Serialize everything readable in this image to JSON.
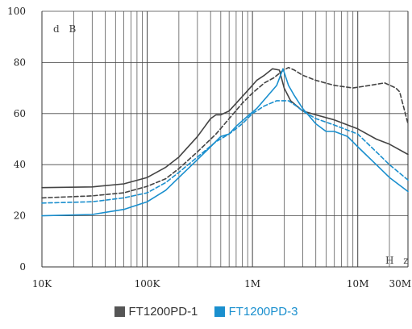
{
  "chart_data": {
    "type": "line",
    "title": "",
    "xlabel": "",
    "ylabel": "",
    "x_unit": "H z",
    "y_unit": "d B",
    "x_scale": "log",
    "xlim": [
      10000,
      30000000
    ],
    "ylim": [
      0,
      100
    ],
    "grid": true,
    "x_ticks": [
      {
        "value": 10000,
        "label": "10K"
      },
      {
        "value": 100000,
        "label": "100K"
      },
      {
        "value": 1000000,
        "label": "1M"
      },
      {
        "value": 10000000,
        "label": "10M"
      },
      {
        "value": 30000000,
        "label": "30M"
      }
    ],
    "y_ticks": [
      0,
      20,
      40,
      60,
      80,
      100
    ],
    "legend": {
      "position": "bottom",
      "entries": [
        {
          "name": "FT1200PD-1",
          "color": "#555555"
        },
        {
          "name": "FT1200PD-3",
          "color": "#1a8fce"
        }
      ]
    },
    "series": [
      {
        "name": "FT1200PD-1 (solid)",
        "color": "#444444",
        "dash": "solid",
        "points": [
          [
            10000,
            31
          ],
          [
            30000,
            31.3
          ],
          [
            60000,
            32.5
          ],
          [
            100000,
            35
          ],
          [
            150000,
            39
          ],
          [
            200000,
            43
          ],
          [
            300000,
            51
          ],
          [
            400000,
            58
          ],
          [
            450000,
            59.5
          ],
          [
            500000,
            59.5
          ],
          [
            600000,
            61
          ],
          [
            700000,
            64
          ],
          [
            900000,
            69
          ],
          [
            1100000,
            73
          ],
          [
            1300000,
            75
          ],
          [
            1550000,
            77.5
          ],
          [
            1800000,
            77
          ],
          [
            2000000,
            70
          ],
          [
            2300000,
            65
          ],
          [
            3000000,
            61
          ],
          [
            4000000,
            59.5
          ],
          [
            6000000,
            57.5
          ],
          [
            10000000,
            54
          ],
          [
            15000000,
            50
          ],
          [
            20000000,
            48
          ],
          [
            30000000,
            44
          ]
        ]
      },
      {
        "name": "FT1200PD-1 (dashed)",
        "color": "#444444",
        "dash": "dashed",
        "points": [
          [
            10000,
            27
          ],
          [
            30000,
            27.8
          ],
          [
            60000,
            29
          ],
          [
            100000,
            31.5
          ],
          [
            150000,
            34.5
          ],
          [
            200000,
            38.5
          ],
          [
            300000,
            45
          ],
          [
            450000,
            52
          ],
          [
            600000,
            58
          ],
          [
            800000,
            64
          ],
          [
            1000000,
            68
          ],
          [
            1300000,
            72
          ],
          [
            1600000,
            74
          ],
          [
            1900000,
            76.5
          ],
          [
            2200000,
            78
          ],
          [
            2500000,
            77
          ],
          [
            3000000,
            75
          ],
          [
            4000000,
            73
          ],
          [
            6000000,
            71
          ],
          [
            9000000,
            70
          ],
          [
            13000000,
            71
          ],
          [
            18000000,
            72
          ],
          [
            23000000,
            70
          ],
          [
            25000000,
            68.5
          ],
          [
            30000000,
            56
          ]
        ]
      },
      {
        "name": "FT1200PD-3 (solid)",
        "color": "#1a8fce",
        "dash": "solid",
        "points": [
          [
            10000,
            20
          ],
          [
            30000,
            20.5
          ],
          [
            60000,
            22.5
          ],
          [
            100000,
            25.5
          ],
          [
            150000,
            30
          ],
          [
            200000,
            35
          ],
          [
            300000,
            42
          ],
          [
            400000,
            47
          ],
          [
            500000,
            51
          ],
          [
            600000,
            52
          ],
          [
            700000,
            55
          ],
          [
            900000,
            59
          ],
          [
            1100000,
            62
          ],
          [
            1400000,
            67
          ],
          [
            1700000,
            71
          ],
          [
            1950000,
            77.5
          ],
          [
            2200000,
            71
          ],
          [
            2500000,
            67
          ],
          [
            3000000,
            62
          ],
          [
            4000000,
            56
          ],
          [
            5000000,
            53
          ],
          [
            6000000,
            53
          ],
          [
            8000000,
            51
          ],
          [
            10000000,
            47
          ],
          [
            15000000,
            40
          ],
          [
            20000000,
            35
          ],
          [
            30000000,
            29.5
          ]
        ]
      },
      {
        "name": "FT1200PD-3 (dashed)",
        "color": "#1a8fce",
        "dash": "dashed",
        "points": [
          [
            10000,
            25
          ],
          [
            30000,
            25.5
          ],
          [
            60000,
            27
          ],
          [
            100000,
            29
          ],
          [
            150000,
            33
          ],
          [
            200000,
            37
          ],
          [
            300000,
            43
          ],
          [
            450000,
            49
          ],
          [
            600000,
            52
          ],
          [
            800000,
            56
          ],
          [
            1000000,
            60
          ],
          [
            1300000,
            63
          ],
          [
            1700000,
            65
          ],
          [
            2200000,
            65
          ],
          [
            2600000,
            63
          ],
          [
            3000000,
            61
          ],
          [
            4000000,
            58
          ],
          [
            6000000,
            55.5
          ],
          [
            10000000,
            52
          ],
          [
            15000000,
            45
          ],
          [
            20000000,
            40
          ],
          [
            30000000,
            34
          ]
        ]
      }
    ]
  }
}
